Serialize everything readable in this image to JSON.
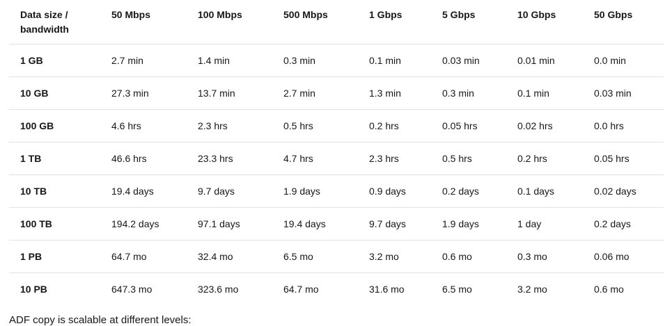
{
  "table": {
    "headers": [
      "Data size / bandwidth",
      "50 Mbps",
      "100 Mbps",
      "500 Mbps",
      "1 Gbps",
      "5 Gbps",
      "10 Gbps",
      "50 Gbps"
    ],
    "rows": [
      [
        "1 GB",
        "2.7 min",
        "1.4 min",
        "0.3 min",
        "0.1 min",
        "0.03 min",
        "0.01 min",
        "0.0 min"
      ],
      [
        "10 GB",
        "27.3 min",
        "13.7 min",
        "2.7 min",
        "1.3 min",
        "0.3 min",
        "0.1 min",
        "0.03 min"
      ],
      [
        "100 GB",
        "4.6 hrs",
        "2.3 hrs",
        "0.5 hrs",
        "0.2 hrs",
        "0.05 hrs",
        "0.02 hrs",
        "0.0 hrs"
      ],
      [
        "1 TB",
        "46.6 hrs",
        "23.3 hrs",
        "4.7 hrs",
        "2.3 hrs",
        "0.5 hrs",
        "0.2 hrs",
        "0.05 hrs"
      ],
      [
        "10 TB",
        "19.4 days",
        "9.7 days",
        "1.9 days",
        "0.9 days",
        "0.2 days",
        "0.1 days",
        "0.02 days"
      ],
      [
        "100 TB",
        "194.2 days",
        "97.1 days",
        "19.4 days",
        "9.7 days",
        "1.9 days",
        "1 day",
        "0.2 days"
      ],
      [
        "1 PB",
        "64.7 mo",
        "32.4 mo",
        "6.5 mo",
        "3.2 mo",
        "0.6 mo",
        "0.3 mo",
        "0.06 mo"
      ],
      [
        "10 PB",
        "647.3 mo",
        "323.6 mo",
        "64.7 mo",
        "31.6 mo",
        "6.5 mo",
        "3.2 mo",
        "0.6 mo"
      ]
    ]
  },
  "footer_text": "ADF copy is scalable at different levels:"
}
